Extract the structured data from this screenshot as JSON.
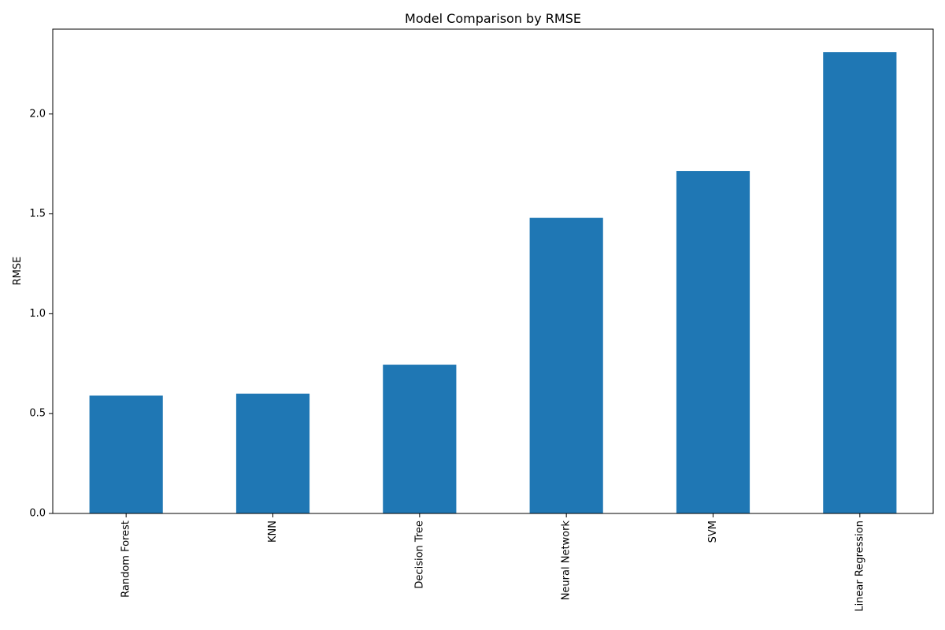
{
  "chart_data": {
    "type": "bar",
    "title": "Model Comparison by RMSE",
    "xlabel": "",
    "ylabel": "RMSE",
    "categories": [
      "Random Forest",
      "KNN",
      "Decision Tree",
      "Neural Network",
      "SVM",
      "Linear Regression"
    ],
    "values": [
      0.59,
      0.6,
      0.745,
      1.48,
      1.715,
      2.31
    ],
    "ylim": [
      0,
      2.425
    ],
    "yticks": [
      0.0,
      0.5,
      1.0,
      1.5,
      2.0
    ],
    "ytick_labels": [
      "0.0",
      "0.5",
      "1.0",
      "1.5",
      "2.0"
    ],
    "grid": false,
    "legend": "none",
    "bar_color": "#1f77b4"
  }
}
